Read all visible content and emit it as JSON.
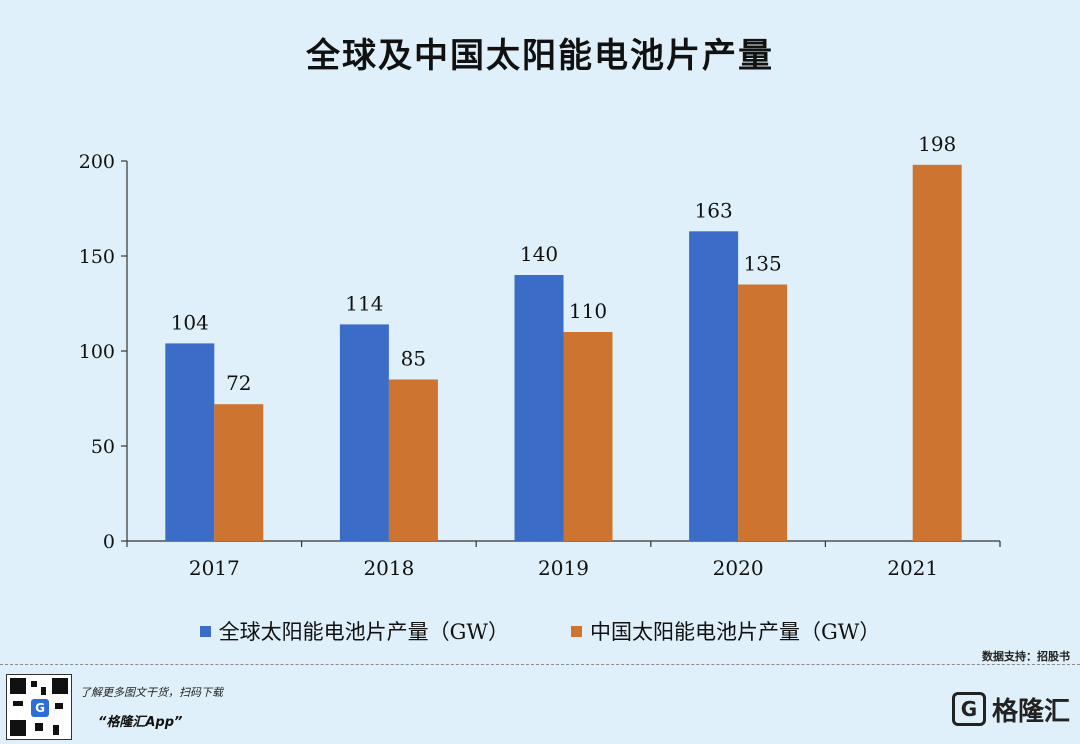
{
  "title": "全球及中国太阳能电池片产量",
  "chart_data": {
    "type": "bar",
    "categories": [
      "2017",
      "2018",
      "2019",
      "2020",
      "2021"
    ],
    "series": [
      {
        "name": "全球太阳能电池片产量（GW）",
        "values": [
          104,
          114,
          140,
          163,
          null
        ],
        "color": "#3b6cc8"
      },
      {
        "name": "中国太阳能电池片产量（GW）",
        "values": [
          72,
          85,
          110,
          135,
          198
        ],
        "color": "#cc7430"
      }
    ],
    "yticks": [
      "0",
      "50",
      "100",
      "150",
      "200"
    ],
    "ylim": [
      0,
      200
    ],
    "grid": false,
    "legend_position": "bottom"
  },
  "source": "数据支持：招股书",
  "footer": {
    "promo_line": "了解更多图文干货，扫码下载",
    "app_name": "“格隆汇App”",
    "brand_logo": "G",
    "brand_name": "格隆汇",
    "qr_badge": "G"
  }
}
